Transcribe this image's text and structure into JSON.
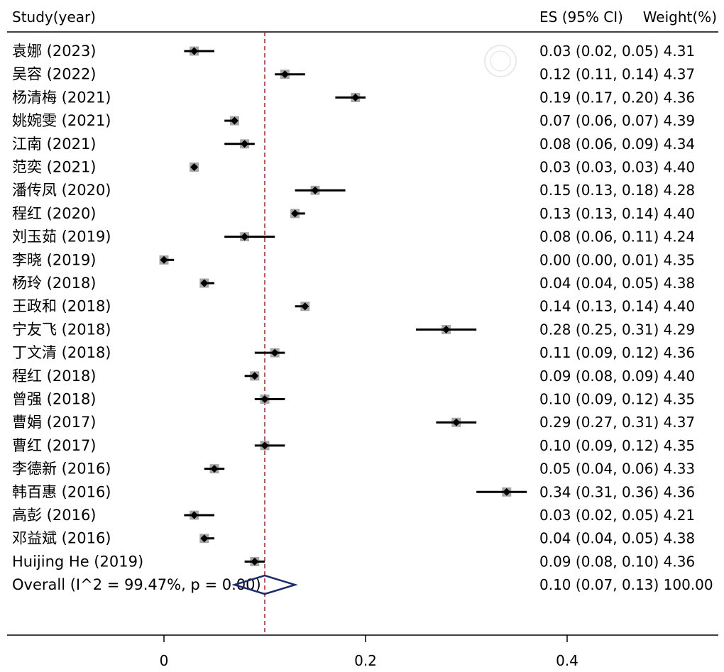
{
  "chart_data": {
    "type": "forest",
    "header": {
      "study_col": "Study(year)",
      "es_col": "ES (95% CI)",
      "weight_col": "Weight(%)"
    },
    "xlim": [
      -0.155,
      0.545
    ],
    "xticks": [
      0,
      0.2,
      0.4
    ],
    "xtick_labels": [
      "0",
      "0.2",
      "0.4"
    ],
    "reference_line": 0.1,
    "studies": [
      {
        "label": "袁娜 (2023)",
        "es": 0.03,
        "lo": 0.02,
        "hi": 0.05,
        "weight": 4.31,
        "text": "0.03 (0.02, 0.05) 4.31"
      },
      {
        "label": "吴容 (2022)",
        "es": 0.12,
        "lo": 0.11,
        "hi": 0.14,
        "weight": 4.37,
        "text": "0.12 (0.11, 0.14) 4.37"
      },
      {
        "label": "杨清梅 (2021)",
        "es": 0.19,
        "lo": 0.17,
        "hi": 0.2,
        "weight": 4.36,
        "text": "0.19 (0.17, 0.20) 4.36"
      },
      {
        "label": "姚婉雯 (2021)",
        "es": 0.07,
        "lo": 0.06,
        "hi": 0.07,
        "weight": 4.39,
        "text": "0.07 (0.06, 0.07) 4.39"
      },
      {
        "label": "江南 (2021)",
        "es": 0.08,
        "lo": 0.06,
        "hi": 0.09,
        "weight": 4.34,
        "text": "0.08 (0.06, 0.09) 4.34"
      },
      {
        "label": "范奕 (2021)",
        "es": 0.03,
        "lo": 0.03,
        "hi": 0.03,
        "weight": 4.4,
        "text": "0.03 (0.03, 0.03) 4.40"
      },
      {
        "label": "潘传凤 (2020)",
        "es": 0.15,
        "lo": 0.13,
        "hi": 0.18,
        "weight": 4.28,
        "text": "0.15 (0.13, 0.18) 4.28"
      },
      {
        "label": "程红 (2020)",
        "es": 0.13,
        "lo": 0.13,
        "hi": 0.14,
        "weight": 4.4,
        "text": "0.13 (0.13, 0.14) 4.40"
      },
      {
        "label": "刘玉茹 (2019)",
        "es": 0.08,
        "lo": 0.06,
        "hi": 0.11,
        "weight": 4.24,
        "text": "0.08 (0.06, 0.11) 4.24"
      },
      {
        "label": "李晓 (2019)",
        "es": 0.0,
        "lo": 0.0,
        "hi": 0.01,
        "weight": 4.35,
        "text": "0.00 (0.00, 0.01) 4.35"
      },
      {
        "label": "杨玲 (2018)",
        "es": 0.04,
        "lo": 0.04,
        "hi": 0.05,
        "weight": 4.38,
        "text": "0.04 (0.04, 0.05) 4.38"
      },
      {
        "label": "王政和 (2018)",
        "es": 0.14,
        "lo": 0.13,
        "hi": 0.14,
        "weight": 4.4,
        "text": "0.14 (0.13, 0.14) 4.40"
      },
      {
        "label": "宁友飞 (2018)",
        "es": 0.28,
        "lo": 0.25,
        "hi": 0.31,
        "weight": 4.29,
        "text": "0.28 (0.25, 0.31) 4.29"
      },
      {
        "label": "丁文清 (2018)",
        "es": 0.11,
        "lo": 0.09,
        "hi": 0.12,
        "weight": 4.36,
        "text": "0.11 (0.09, 0.12) 4.36"
      },
      {
        "label": "程红 (2018)",
        "es": 0.09,
        "lo": 0.08,
        "hi": 0.09,
        "weight": 4.4,
        "text": "0.09 (0.08, 0.09) 4.40"
      },
      {
        "label": "曾强 (2018)",
        "es": 0.1,
        "lo": 0.09,
        "hi": 0.12,
        "weight": 4.35,
        "text": "0.10 (0.09, 0.12) 4.35"
      },
      {
        "label": "曹娟 (2017)",
        "es": 0.29,
        "lo": 0.27,
        "hi": 0.31,
        "weight": 4.37,
        "text": "0.29 (0.27, 0.31) 4.37"
      },
      {
        "label": "曹红 (2017)",
        "es": 0.1,
        "lo": 0.09,
        "hi": 0.12,
        "weight": 4.35,
        "text": "0.10 (0.09, 0.12) 4.35"
      },
      {
        "label": "李德新 (2016)",
        "es": 0.05,
        "lo": 0.04,
        "hi": 0.06,
        "weight": 4.33,
        "text": "0.05 (0.04, 0.06) 4.33"
      },
      {
        "label": "韩百惠 (2016)",
        "es": 0.34,
        "lo": 0.31,
        "hi": 0.36,
        "weight": 4.36,
        "text": "0.34 (0.31, 0.36) 4.36"
      },
      {
        "label": "高彭 (2016)",
        "es": 0.03,
        "lo": 0.02,
        "hi": 0.05,
        "weight": 4.21,
        "text": "0.03 (0.02, 0.05) 4.21"
      },
      {
        "label": "邓益斌 (2016)",
        "es": 0.04,
        "lo": 0.04,
        "hi": 0.05,
        "weight": 4.38,
        "text": "0.04 (0.04, 0.05) 4.38"
      },
      {
        "label": "Huijing He  (2019)",
        "es": 0.09,
        "lo": 0.08,
        "hi": 0.1,
        "weight": 4.36,
        "text": "0.09 (0.08, 0.10) 4.36"
      }
    ],
    "overall": {
      "label": "Overall  (I^2 = 99.47%, p = 0.00)",
      "es": 0.1,
      "lo": 0.07,
      "hi": 0.13,
      "weight": 100.0,
      "text": "0.10 (0.07, 0.13) 100.00"
    },
    "colors": {
      "ci_line": "#000000",
      "point": "#000000",
      "weight_box": "#a6a6a6",
      "diamond": "#1b2a6b",
      "reference_line": "#9e2a2a",
      "rule": "#000000"
    }
  }
}
